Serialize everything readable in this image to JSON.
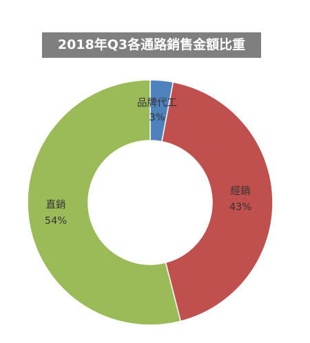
{
  "chart_data": {
    "type": "pie",
    "variant": "donut",
    "title": "2018年Q3各通路銷售金額比重",
    "series": [
      {
        "category": "品牌代工",
        "value": 3,
        "value_label": "3%",
        "color": "#4f81bd"
      },
      {
        "category": "經銷",
        "value": 43,
        "value_label": "43%",
        "color": "#c0504d"
      },
      {
        "category": "直銷",
        "value": 54,
        "value_label": "54%",
        "color": "#9bbb59"
      }
    ],
    "legend": "none",
    "start_angle": "12 o'clock, clockwise"
  }
}
